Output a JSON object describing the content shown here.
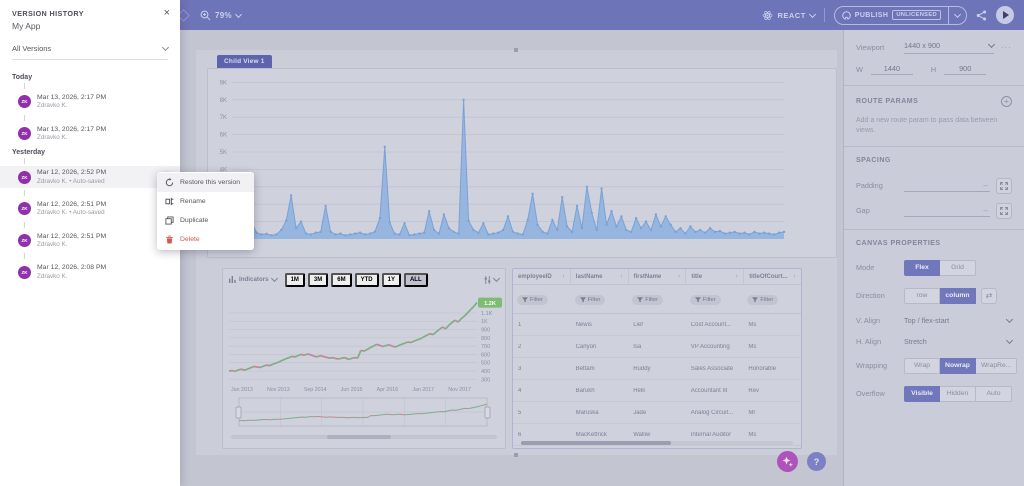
{
  "topbar": {
    "zoom_level": "79%",
    "framework": "REACT",
    "publish_label": "PUBLISH",
    "license_badge": "UNLICENSED"
  },
  "version_panel": {
    "title": "VERSION HISTORY",
    "app_name": "My App",
    "filter_value": "All Versions",
    "groups": [
      {
        "label": "Today",
        "entries": [
          {
            "initials": "ZK",
            "timestamp": "Mar 13, 2026, 2:17 PM",
            "author": "Zdravko K.",
            "active": false
          },
          {
            "initials": "ZK",
            "timestamp": "Mar 13, 2026, 2:17 PM",
            "author": "Zdravko K.",
            "active": false
          }
        ]
      },
      {
        "label": "Yesterday",
        "entries": [
          {
            "initials": "ZK",
            "timestamp": "Mar 12, 2026, 2:52 PM",
            "author": "Zdravko K. • Auto-saved",
            "active": true
          },
          {
            "initials": "ZK",
            "timestamp": "Mar 12, 2026, 2:51 PM",
            "author": "Zdravko K. • Auto-saved",
            "active": false
          },
          {
            "initials": "ZK",
            "timestamp": "Mar 12, 2026, 2:51 PM",
            "author": "Zdravko K.",
            "active": false
          },
          {
            "initials": "ZK",
            "timestamp": "Mar 12, 2026, 2:08 PM",
            "author": "Zdravko K.",
            "active": false
          }
        ]
      }
    ]
  },
  "context_menu": {
    "items": [
      {
        "label": "Restore this version",
        "icon": "restore-icon",
        "danger": false,
        "highlighted": true
      },
      {
        "label": "Rename",
        "icon": "rename-icon",
        "danger": false,
        "highlighted": false
      },
      {
        "label": "Duplicate",
        "icon": "duplicate-icon",
        "danger": false,
        "highlighted": false
      },
      {
        "label": "Delete",
        "icon": "delete-icon",
        "danger": true,
        "highlighted": false
      }
    ]
  },
  "inspector": {
    "viewport": {
      "label": "Viewport",
      "value": "1440 x 900",
      "w_label": "W",
      "w_value": "1440",
      "h_label": "H",
      "h_value": "900"
    },
    "route_params": {
      "title": "ROUTE PARAMS",
      "hint": "Add a new route param to pass data between views."
    },
    "spacing": {
      "title": "SPACING",
      "padding_label": "Padding",
      "padding_placeholder": "--",
      "gap_label": "Gap",
      "gap_placeholder": "--"
    },
    "canvas_properties": {
      "title": "CANVAS PROPERTIES",
      "rows": [
        {
          "label": "Mode",
          "type": "toggle",
          "options": [
            "Flex",
            "Grid"
          ],
          "active": "Flex",
          "extra": ""
        },
        {
          "label": "Direction",
          "type": "toggle",
          "options": [
            "row",
            "column"
          ],
          "active": "column",
          "extra": "swap"
        },
        {
          "label": "V. Align",
          "type": "select",
          "value": "Top / flex-start"
        },
        {
          "label": "H. Align",
          "type": "select",
          "value": "Stretch"
        },
        {
          "label": "Wrapping",
          "type": "toggle",
          "options": [
            "Wrap",
            "Nowrap",
            "WrapRe..."
          ],
          "active": "Nowrap",
          "extra": ""
        },
        {
          "label": "Overflow",
          "type": "toggle",
          "options": [
            "Visible",
            "Hidden",
            "Auto"
          ],
          "active": "Visible",
          "extra": ""
        }
      ]
    }
  },
  "canvas": {
    "child_view_label": "Child View 1",
    "spike_chart": {
      "type": "area",
      "y_ticks": [
        "9K",
        "8K",
        "7K",
        "6K",
        "5K",
        "4K",
        "3K",
        "2K",
        "1K"
      ],
      "ylim": [
        0,
        9000
      ],
      "values": [
        320,
        260,
        410,
        1500,
        950,
        360,
        260,
        300,
        210,
        260,
        520,
        1050,
        2500,
        620,
        1000,
        320,
        260,
        360,
        410,
        1900,
        420,
        260,
        310,
        210,
        260,
        310,
        360,
        260,
        310,
        420,
        1200,
        5300,
        950,
        310,
        260,
        900,
        210,
        260,
        310,
        360,
        1600,
        520,
        310,
        1400,
        620,
        410,
        310,
        8000,
        1050,
        520,
        360,
        900,
        260,
        310,
        360,
        520,
        1300,
        420,
        310,
        260,
        1100,
        2600,
        820,
        420,
        310,
        1100,
        520,
        2400,
        720,
        410,
        1900,
        620,
        3000,
        1500,
        520,
        2900,
        820,
        1600,
        720,
        1300,
        520,
        410,
        1200,
        620,
        1000,
        520,
        1400,
        720,
        1300,
        820,
        410,
        620,
        310,
        720,
        410,
        520,
        360,
        620,
        410,
        460,
        310,
        360,
        410,
        310,
        360,
        260,
        410,
        310,
        360,
        310,
        260,
        360,
        410
      ]
    },
    "stock_widget": {
      "toolbar": {
        "indicators_label": "Indicators",
        "ranges": [
          "1M",
          "3M",
          "6M",
          "YTD",
          "1Y",
          "ALL"
        ],
        "active_range": "ALL"
      },
      "chart": {
        "type": "line",
        "badge": "1.2K",
        "y_ticks": [
          "300",
          "400",
          "500",
          "600",
          "700",
          "800",
          "900",
          "1K",
          "1.1K"
        ],
        "y_tick_values": [
          300,
          400,
          500,
          600,
          700,
          800,
          900,
          1000,
          1100
        ],
        "ylim": [
          280,
          1280
        ],
        "x_ticks": [
          "Jan 2013",
          "Nov 2013",
          "Sep 2014",
          "Jun 2015",
          "Apr 2016",
          "Jan 2017",
          "Nov 2017"
        ],
        "up_color": "#7fae83",
        "down_color": "#c2849a",
        "values": [
          400,
          405,
          396,
          415,
          422,
          410,
          426,
          440,
          455,
          448,
          444,
          460,
          472,
          466,
          482,
          496,
          510,
          530,
          546,
          560,
          576,
          570,
          586,
          602,
          590,
          606,
          596,
          580,
          570,
          586,
          576,
          566,
          556,
          562,
          550,
          546,
          556,
          562,
          540,
          552,
          562,
          556,
          648,
          640,
          660,
          682,
          700,
          722,
          710,
          694,
          706,
          716,
          700,
          690,
          706,
          722,
          736,
          750,
          744,
          762,
          776,
          790,
          810,
          830,
          850,
          838,
          872,
          900,
          930,
          908,
          950,
          982,
          1012,
          990,
          1032,
          1062,
          1100,
          1142,
          1180,
          1225
        ]
      }
    },
    "table_widget": {
      "columns": [
        "employeeID",
        "lastName",
        "firstName",
        "title",
        "titleOfCourt..."
      ],
      "filter_label": "Filter",
      "rows": [
        [
          "1",
          "Newis",
          "Lief",
          "Cost Account...",
          "Ms"
        ],
        [
          "2",
          "Carlyon",
          "Isa",
          "VP Accounting",
          "Ms"
        ],
        [
          "3",
          "Bettam",
          "Ruddy",
          "Sales Associate",
          "Honorable"
        ],
        [
          "4",
          "Barukh",
          "Helli",
          "Accountant III",
          "Rev"
        ],
        [
          "5",
          "Maruska",
          "Jade",
          "Analog Circuit...",
          "Mr"
        ],
        [
          "6",
          "MacKettrick",
          "Walliw",
          "Internal Auditor",
          "Ms"
        ]
      ]
    }
  },
  "colors": {
    "topbar": "#6e74b8",
    "canvas_bg": "#c3c5d1",
    "accent_active": "#7077bb",
    "avatar": "#9031ab",
    "area_fill": "#8fb3e0",
    "badge_green": "#7fbb72",
    "danger": "#d9534f",
    "ai_button": "#ad53bb"
  }
}
